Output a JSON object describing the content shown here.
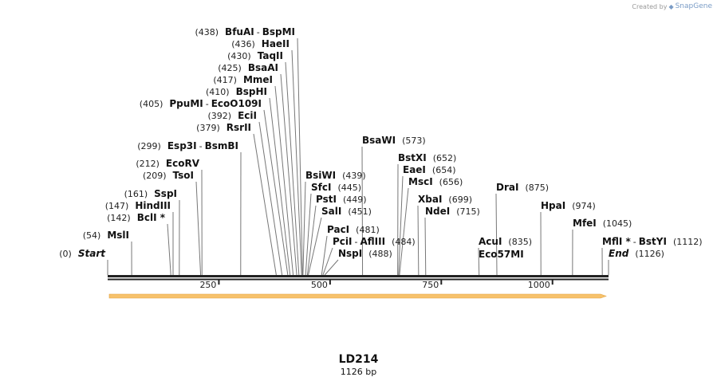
{
  "brand": {
    "created_by": "Created by",
    "name": "SnapGene"
  },
  "sequence": {
    "name": "LD214",
    "length_label": "1126 bp",
    "length": 1126
  },
  "colors": {
    "backbone": "#222222",
    "feature_arrow": "#f7c26b",
    "feature_arrow_border": "#e0a040",
    "site_line": "#777777"
  },
  "ticks": [
    {
      "value": 250,
      "label": "250"
    },
    {
      "value": 500,
      "label": "500"
    },
    {
      "value": 750,
      "label": "750"
    },
    {
      "value": 1000,
      "label": "1000"
    }
  ],
  "sites": [
    {
      "pos": 0,
      "pos_label": "(0)",
      "names": [
        "Start"
      ],
      "italic": true
    },
    {
      "pos": 54,
      "pos_label": "(54)",
      "names": [
        "MslI"
      ]
    },
    {
      "pos": 142,
      "pos_label": "(142)",
      "names": [
        "BclI *"
      ]
    },
    {
      "pos": 147,
      "pos_label": "(147)",
      "names": [
        "HindIII"
      ]
    },
    {
      "pos": 161,
      "pos_label": "(161)",
      "names": [
        "SspI"
      ]
    },
    {
      "pos": 209,
      "pos_label": "(209)",
      "names": [
        "TsoI"
      ]
    },
    {
      "pos": 212,
      "pos_label": "(212)",
      "names": [
        "EcoRV"
      ]
    },
    {
      "pos": 299,
      "pos_label": "(299)",
      "names": [
        "Esp3I",
        "BsmBI"
      ]
    },
    {
      "pos": 379,
      "pos_label": "(379)",
      "names": [
        "RsrII"
      ]
    },
    {
      "pos": 392,
      "pos_label": "(392)",
      "names": [
        "EciI"
      ]
    },
    {
      "pos": 405,
      "pos_label": "(405)",
      "names": [
        "PpuMI",
        "EcoO109I"
      ]
    },
    {
      "pos": 410,
      "pos_label": "(410)",
      "names": [
        "BspHI"
      ]
    },
    {
      "pos": 417,
      "pos_label": "(417)",
      "names": [
        "MmeI"
      ]
    },
    {
      "pos": 425,
      "pos_label": "(425)",
      "names": [
        "BsaAI"
      ]
    },
    {
      "pos": 430,
      "pos_label": "(430)",
      "names": [
        "TaqII"
      ]
    },
    {
      "pos": 436,
      "pos_label": "(436)",
      "names": [
        "HaeII"
      ]
    },
    {
      "pos": 438,
      "pos_label": "(438)",
      "names": [
        "BfuAI",
        "BspMI"
      ]
    },
    {
      "pos": 439,
      "pos_label": "(439)",
      "names": [
        "BsiWI"
      ]
    },
    {
      "pos": 445,
      "pos_label": "(445)",
      "names": [
        "SfcI"
      ]
    },
    {
      "pos": 449,
      "pos_label": "(449)",
      "names": [
        "PstI"
      ]
    },
    {
      "pos": 451,
      "pos_label": "(451)",
      "names": [
        "SalI"
      ]
    },
    {
      "pos": 481,
      "pos_label": "(481)",
      "names": [
        "PacI"
      ]
    },
    {
      "pos": 484,
      "pos_label": "(484)",
      "names": [
        "PciI",
        "AflIII"
      ]
    },
    {
      "pos": 488,
      "pos_label": "(488)",
      "names": [
        "NspI"
      ]
    },
    {
      "pos": 573,
      "pos_label": "(573)",
      "names": [
        "BsaWI"
      ]
    },
    {
      "pos": 652,
      "pos_label": "(652)",
      "names": [
        "BstXI"
      ]
    },
    {
      "pos": 654,
      "pos_label": "(654)",
      "names": [
        "EaeI"
      ]
    },
    {
      "pos": 656,
      "pos_label": "(656)",
      "names": [
        "MscI"
      ]
    },
    {
      "pos": 699,
      "pos_label": "(699)",
      "names": [
        "XbaI"
      ]
    },
    {
      "pos": 715,
      "pos_label": "(715)",
      "names": [
        "NdeI"
      ]
    },
    {
      "pos": 835,
      "pos_label": "(835)",
      "names": [
        "AcuI"
      ],
      "second_line": "Eco57MI"
    },
    {
      "pos": 875,
      "pos_label": "(875)",
      "names": [
        "DraI"
      ]
    },
    {
      "pos": 974,
      "pos_label": "(974)",
      "names": [
        "HpaI"
      ]
    },
    {
      "pos": 1045,
      "pos_label": "(1045)",
      "names": [
        "MfeI"
      ]
    },
    {
      "pos": 1112,
      "pos_label": "(1112)",
      "names": [
        "MflI *",
        "BstYI"
      ]
    },
    {
      "pos": 1126,
      "pos_label": "(1126)",
      "names": [
        "End"
      ],
      "italic": true
    }
  ]
}
